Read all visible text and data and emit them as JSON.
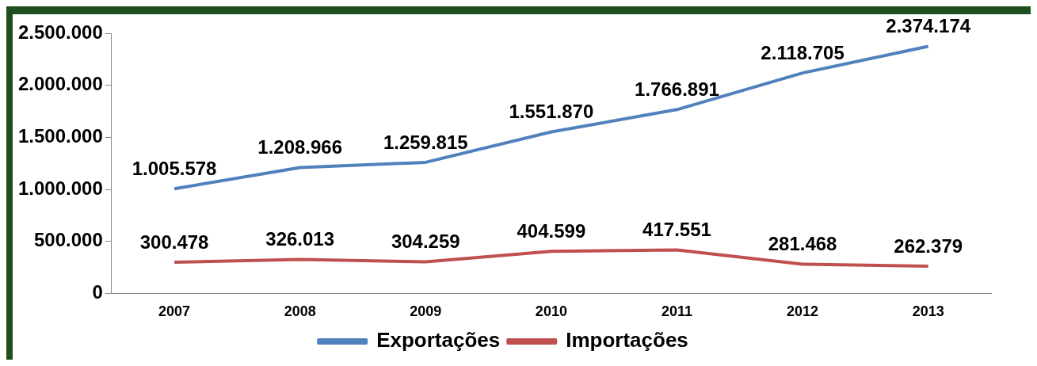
{
  "chart_data": {
    "type": "line",
    "categories": [
      "2007",
      "2008",
      "2009",
      "2010",
      "2011",
      "2012",
      "2013"
    ],
    "series": [
      {
        "name": "Exportações",
        "color": "#4f81bd",
        "values": [
          1005578,
          1208966,
          1259815,
          1551870,
          1766891,
          2118705,
          2374174
        ],
        "value_labels": [
          "1.005.578",
          "1.208.966",
          "1.259.815",
          "1.551.870",
          "1.766.891",
          "2.118.705",
          "2.374.174"
        ]
      },
      {
        "name": "Importações",
        "color": "#c0504d",
        "values": [
          300478,
          326013,
          304259,
          404599,
          417551,
          281468,
          262379
        ],
        "value_labels": [
          "300.478",
          "326.013",
          "304.259",
          "404.599",
          "417.551",
          "281.468",
          "262.379"
        ]
      }
    ],
    "ylim": [
      0,
      2500000
    ],
    "yticks": [
      {
        "value": 0,
        "label": "0"
      },
      {
        "value": 500000,
        "label": "500.000"
      },
      {
        "value": 1000000,
        "label": "1.000.000"
      },
      {
        "value": 1500000,
        "label": "1.500.000"
      },
      {
        "value": 2000000,
        "label": "2.000.000"
      },
      {
        "value": 2500000,
        "label": "2.500.000"
      }
    ],
    "grid": false,
    "legend": "bottom",
    "marker": "none",
    "line_style": "solid"
  }
}
